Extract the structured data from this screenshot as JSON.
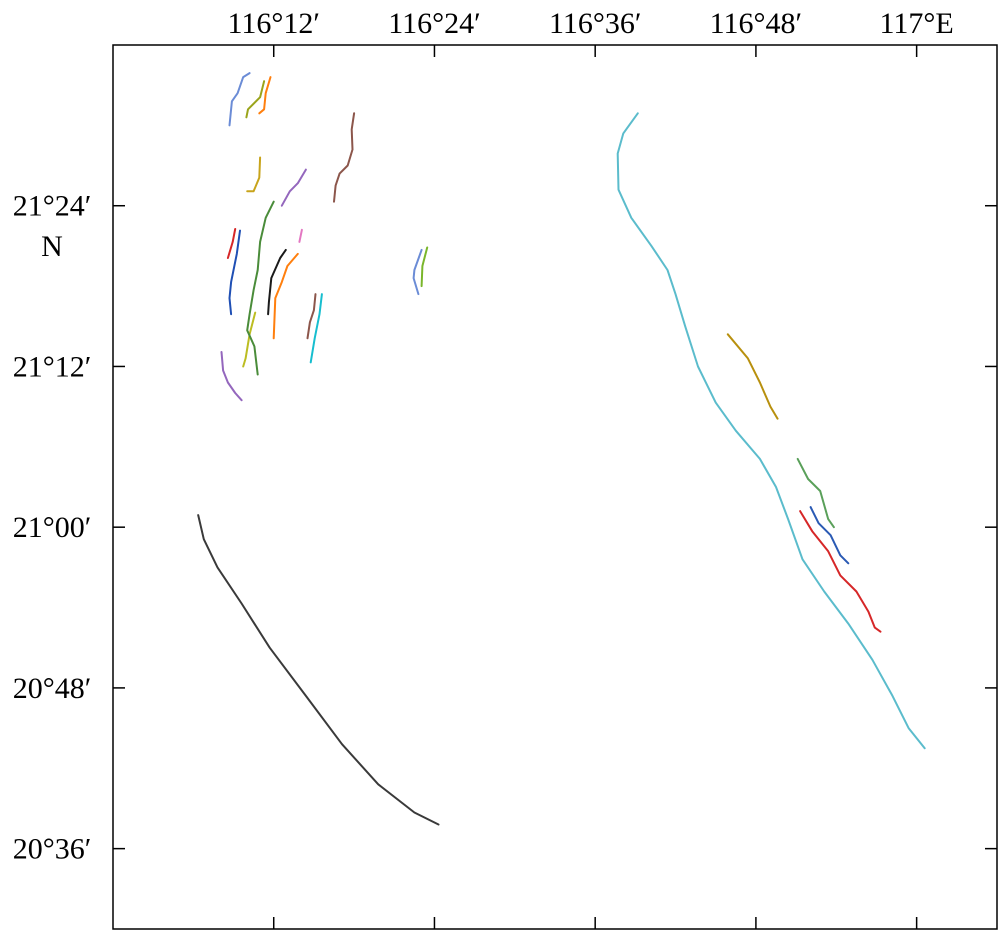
{
  "map": {
    "x_ticks": [
      {
        "label": "116°12′",
        "value": 116.2
      },
      {
        "label": "116°24′",
        "value": 116.4
      },
      {
        "label": "116°36′",
        "value": 116.6
      },
      {
        "label": "116°48′",
        "value": 116.8
      },
      {
        "label": "117°E",
        "value": 117.0
      }
    ],
    "y_ticks": [
      {
        "label": "21°24′",
        "value": 21.4
      },
      {
        "label": "21°12′",
        "value": 21.2
      },
      {
        "label": "21°00′",
        "value": 21.0
      },
      {
        "label": "20°48′",
        "value": 20.8
      },
      {
        "label": "20°36′",
        "value": 20.6
      }
    ],
    "y_unit_label": "N"
  },
  "chart_data": {
    "type": "line",
    "title": "",
    "xlabel": "",
    "ylabel": "",
    "xlim": [
      116.0,
      117.1
    ],
    "ylim": [
      20.5,
      21.6
    ],
    "grid": false,
    "legend": "none",
    "series": [
      {
        "color": "#d62728",
        "points": [
          [
            116.152,
            21.371
          ],
          [
            116.149,
            21.355
          ],
          [
            116.143,
            21.335
          ]
        ]
      },
      {
        "color": "#1f4fb4",
        "points": [
          [
            116.158,
            21.369
          ],
          [
            116.154,
            21.34
          ],
          [
            116.147,
            21.305
          ],
          [
            116.145,
            21.285
          ],
          [
            116.147,
            21.265
          ]
        ]
      },
      {
        "color": "#9467bd",
        "points": [
          [
            116.135,
            21.218
          ],
          [
            116.137,
            21.195
          ],
          [
            116.143,
            21.18
          ],
          [
            116.152,
            21.167
          ],
          [
            116.16,
            21.158
          ]
        ]
      },
      {
        "color": "#8c564b",
        "points": [
          [
            116.3,
            21.515
          ],
          [
            116.297,
            21.495
          ],
          [
            116.298,
            21.47
          ],
          [
            116.292,
            21.45
          ],
          [
            116.282,
            21.44
          ],
          [
            116.277,
            21.425
          ],
          [
            116.275,
            21.405
          ]
        ]
      },
      {
        "color": "#bcbd22",
        "points": [
          [
            116.177,
            21.267
          ],
          [
            116.17,
            21.24
          ],
          [
            116.165,
            21.21
          ],
          [
            116.162,
            21.2
          ]
        ]
      },
      {
        "color": "#4a8c3a",
        "points": [
          [
            116.2,
            21.405
          ],
          [
            116.19,
            21.385
          ],
          [
            116.183,
            21.355
          ],
          [
            116.18,
            21.32
          ],
          [
            116.175,
            21.295
          ],
          [
            116.17,
            21.265
          ],
          [
            116.167,
            21.245
          ],
          [
            116.176,
            21.225
          ],
          [
            116.18,
            21.19
          ]
        ]
      },
      {
        "color": "#e377c2",
        "points": [
          [
            116.235,
            21.37
          ],
          [
            116.232,
            21.355
          ]
        ]
      },
      {
        "color": "#9467bd",
        "points": [
          [
            116.24,
            21.445
          ],
          [
            116.23,
            21.428
          ],
          [
            116.22,
            21.418
          ],
          [
            116.21,
            21.4
          ]
        ]
      },
      {
        "color": "#6b8cd6",
        "points": [
          [
            116.17,
            21.565
          ],
          [
            116.162,
            21.56
          ],
          [
            116.155,
            21.54
          ],
          [
            116.148,
            21.53
          ],
          [
            116.145,
            21.5
          ]
        ]
      },
      {
        "color": "#9aa41b",
        "points": [
          [
            116.188,
            21.555
          ],
          [
            116.183,
            21.535
          ],
          [
            116.168,
            21.52
          ],
          [
            116.166,
            21.51
          ]
        ]
      },
      {
        "color": "#ff7f0e",
        "points": [
          [
            116.196,
            21.56
          ],
          [
            116.19,
            21.54
          ],
          [
            116.188,
            21.52
          ],
          [
            116.182,
            21.515
          ]
        ]
      },
      {
        "color": "#c8a41b",
        "points": [
          [
            116.183,
            21.46
          ],
          [
            116.182,
            21.435
          ],
          [
            116.175,
            21.418
          ],
          [
            116.167,
            21.418
          ]
        ]
      },
      {
        "color": "#1a1a1a",
        "points": [
          [
            116.215,
            21.345
          ],
          [
            116.208,
            21.335
          ],
          [
            116.197,
            21.31
          ],
          [
            116.194,
            21.28
          ],
          [
            116.193,
            21.265
          ]
        ]
      },
      {
        "color": "#ff7f0e",
        "points": [
          [
            116.23,
            21.34
          ],
          [
            116.217,
            21.325
          ],
          [
            116.21,
            21.305
          ],
          [
            116.202,
            21.285
          ],
          [
            116.2,
            21.235
          ]
        ]
      },
      {
        "color": "#8c564b",
        "points": [
          [
            116.252,
            21.29
          ],
          [
            116.25,
            21.27
          ],
          [
            116.245,
            21.255
          ],
          [
            116.242,
            21.235
          ]
        ]
      },
      {
        "color": "#17becf",
        "points": [
          [
            116.26,
            21.29
          ],
          [
            116.257,
            21.265
          ],
          [
            116.251,
            21.235
          ],
          [
            116.246,
            21.205
          ]
        ]
      },
      {
        "color": "#6b8cd6",
        "points": [
          [
            116.384,
            21.345
          ],
          [
            116.375,
            21.32
          ],
          [
            116.374,
            21.31
          ],
          [
            116.38,
            21.29
          ]
        ]
      },
      {
        "color": "#7ab62b",
        "points": [
          [
            116.391,
            21.348
          ],
          [
            116.385,
            21.325
          ],
          [
            116.384,
            21.3
          ]
        ]
      },
      {
        "color": "#3a3a3a",
        "points": [
          [
            116.106,
            21.015
          ],
          [
            116.113,
            20.985
          ],
          [
            116.13,
            20.95
          ],
          [
            116.16,
            20.905
          ],
          [
            116.195,
            20.85
          ],
          [
            116.24,
            20.79
          ],
          [
            116.285,
            20.73
          ],
          [
            116.33,
            20.68
          ],
          [
            116.375,
            20.645
          ],
          [
            116.405,
            20.63
          ]
        ]
      },
      {
        "color": "#5bbccc",
        "points": [
          [
            116.653,
            21.515
          ],
          [
            116.635,
            21.49
          ],
          [
            116.628,
            21.465
          ],
          [
            116.629,
            21.42
          ],
          [
            116.645,
            21.385
          ],
          [
            116.67,
            21.35
          ],
          [
            116.69,
            21.32
          ],
          [
            116.7,
            21.29
          ],
          [
            116.712,
            21.25
          ],
          [
            116.728,
            21.2
          ],
          [
            116.75,
            21.155
          ],
          [
            116.775,
            21.12
          ],
          [
            116.805,
            21.085
          ],
          [
            116.825,
            21.05
          ],
          [
            116.84,
            21.01
          ],
          [
            116.858,
            20.96
          ],
          [
            116.885,
            20.92
          ],
          [
            116.915,
            20.88
          ],
          [
            116.945,
            20.835
          ],
          [
            116.97,
            20.79
          ],
          [
            116.99,
            20.75
          ],
          [
            117.01,
            20.725
          ]
        ]
      },
      {
        "color": "#b8900e",
        "points": [
          [
            116.765,
            21.24
          ],
          [
            116.79,
            21.21
          ],
          [
            116.805,
            21.18
          ],
          [
            116.818,
            21.15
          ],
          [
            116.827,
            21.135
          ]
        ]
      },
      {
        "color": "#5aa05a",
        "points": [
          [
            116.852,
            21.085
          ],
          [
            116.865,
            21.06
          ],
          [
            116.88,
            21.045
          ],
          [
            116.89,
            21.01
          ],
          [
            116.897,
            21.0
          ]
        ]
      },
      {
        "color": "#2a5ab4",
        "points": [
          [
            116.868,
            21.025
          ],
          [
            116.878,
            21.005
          ],
          [
            116.893,
            20.99
          ],
          [
            116.905,
            20.965
          ],
          [
            116.915,
            20.955
          ]
        ]
      },
      {
        "color": "#d62728",
        "points": [
          [
            116.855,
            21.02
          ],
          [
            116.87,
            20.995
          ],
          [
            116.89,
            20.97
          ],
          [
            116.905,
            20.94
          ],
          [
            116.925,
            20.92
          ],
          [
            116.94,
            20.895
          ],
          [
            116.948,
            20.875
          ],
          [
            116.955,
            20.87
          ]
        ]
      }
    ]
  }
}
